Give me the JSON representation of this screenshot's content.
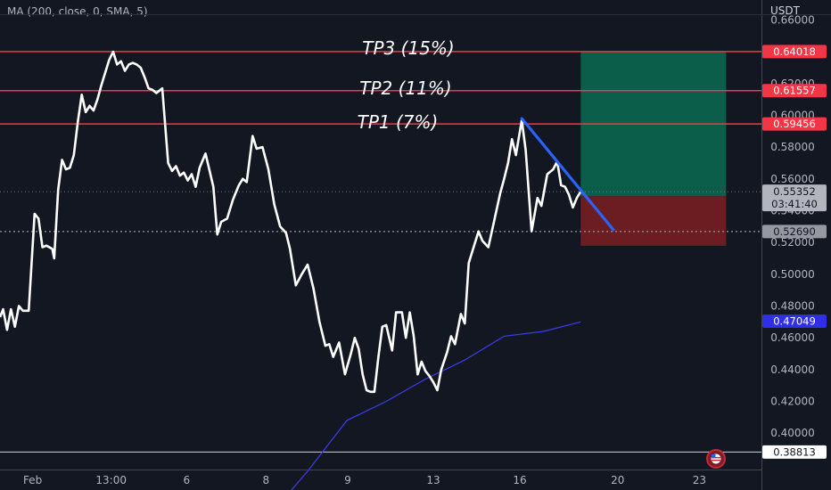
{
  "indicator_legend": "MA (200, close, 0, SMA, 5)",
  "currency": "USDT",
  "annotations": {
    "tp3": "TP3 (15%)",
    "tp2": "TP2 (11%)",
    "tp1": "TP1 (7%)"
  },
  "colors": {
    "background": "#131722",
    "price_line": "#ffffff",
    "ma_line": "#3c3cf0",
    "tp_lines": "#f23645",
    "trendline": "#2962ff",
    "profit_zone": "#0b5e4a",
    "loss_zone": "#6b1d22",
    "axis_text": "#b2b5be"
  },
  "price_badges": {
    "tp3": "0.64018",
    "tp2": "0.61557",
    "tp1": "0.59456",
    "last": "0.55352",
    "countdown": "03:41:40",
    "stop": "0.52690",
    "ma": "0.47049",
    "bottom": "0.38813"
  },
  "chart_data": {
    "type": "line",
    "series": [
      {
        "values": [
          [
            -2.83,
            0.473
          ],
          [
            -2.75,
            0.478
          ],
          [
            -2.65,
            0.465
          ],
          [
            -2.55,
            0.478
          ],
          [
            -2.45,
            0.467
          ],
          [
            -2.35,
            0.48
          ],
          [
            -2.25,
            0.477
          ],
          [
            -2.1,
            0.477
          ],
          [
            -1.95,
            0.538
          ],
          [
            -1.85,
            0.535
          ],
          [
            -1.75,
            0.517
          ],
          [
            -1.65,
            0.518
          ],
          [
            -1.5,
            0.516
          ],
          [
            -1.45,
            0.51
          ],
          [
            -1.35,
            0.553
          ],
          [
            -1.25,
            0.572
          ],
          [
            -1.15,
            0.566
          ],
          [
            -1.05,
            0.567
          ],
          [
            -0.95,
            0.575
          ],
          [
            -0.85,
            0.596
          ],
          [
            -0.75,
            0.613
          ],
          [
            -0.65,
            0.602
          ],
          [
            -0.55,
            0.606
          ],
          [
            -0.45,
            0.603
          ],
          [
            -0.35,
            0.61
          ],
          [
            -0.25,
            0.619
          ],
          [
            -0.15,
            0.627
          ],
          [
            -0.05,
            0.635
          ],
          [
            0.05,
            0.64
          ],
          [
            0.15,
            0.632
          ],
          [
            0.25,
            0.634
          ],
          [
            0.35,
            0.628
          ],
          [
            0.45,
            0.632
          ],
          [
            0.55,
            0.633
          ],
          [
            0.65,
            0.632
          ],
          [
            0.75,
            0.63
          ],
          [
            0.85,
            0.624
          ],
          [
            0.95,
            0.617
          ],
          [
            1.05,
            0.616
          ],
          [
            1.15,
            0.614
          ],
          [
            1.3,
            0.617
          ],
          [
            1.45,
            0.57
          ],
          [
            1.55,
            0.565
          ],
          [
            1.65,
            0.568
          ],
          [
            1.75,
            0.562
          ],
          [
            1.85,
            0.564
          ],
          [
            1.95,
            0.559
          ],
          [
            2.05,
            0.563
          ],
          [
            2.15,
            0.555
          ],
          [
            2.25,
            0.567
          ],
          [
            2.4,
            0.576
          ],
          [
            2.6,
            0.555
          ],
          [
            2.7,
            0.525
          ],
          [
            2.8,
            0.533
          ],
          [
            2.95,
            0.535
          ],
          [
            3.1,
            0.547
          ],
          [
            3.25,
            0.556
          ],
          [
            3.35,
            0.56
          ],
          [
            3.45,
            0.558
          ],
          [
            3.6,
            0.587
          ],
          [
            3.7,
            0.579
          ],
          [
            3.85,
            0.58
          ],
          [
            4.0,
            0.566
          ],
          [
            4.15,
            0.544
          ],
          [
            4.3,
            0.53
          ],
          [
            4.45,
            0.526
          ],
          [
            4.55,
            0.516
          ],
          [
            4.7,
            0.493
          ],
          [
            4.85,
            0.5
          ],
          [
            5.0,
            0.506
          ],
          [
            5.15,
            0.491
          ],
          [
            5.3,
            0.47
          ],
          [
            5.45,
            0.455
          ],
          [
            5.55,
            0.456
          ],
          [
            5.65,
            0.448
          ],
          [
            5.8,
            0.457
          ],
          [
            5.95,
            0.437
          ],
          [
            6.1,
            0.45
          ],
          [
            6.2,
            0.46
          ],
          [
            6.3,
            0.453
          ],
          [
            6.4,
            0.437
          ],
          [
            6.5,
            0.427
          ],
          [
            6.6,
            0.426
          ],
          [
            6.7,
            0.426
          ],
          [
            6.8,
            0.448
          ],
          [
            6.9,
            0.467
          ],
          [
            7.0,
            0.468
          ],
          [
            7.15,
            0.452
          ],
          [
            7.25,
            0.476
          ],
          [
            7.4,
            0.476
          ],
          [
            7.5,
            0.46
          ],
          [
            7.6,
            0.476
          ],
          [
            7.7,
            0.461
          ],
          [
            7.8,
            0.437
          ],
          [
            7.9,
            0.445
          ],
          [
            8.0,
            0.439
          ],
          [
            8.1,
            0.436
          ],
          [
            8.2,
            0.432
          ],
          [
            8.3,
            0.427
          ],
          [
            8.4,
            0.44
          ],
          [
            8.55,
            0.451
          ],
          [
            8.65,
            0.461
          ],
          [
            8.75,
            0.456
          ],
          [
            8.9,
            0.475
          ],
          [
            9.0,
            0.469
          ],
          [
            9.1,
            0.507
          ],
          [
            9.25,
            0.519
          ],
          [
            9.35,
            0.527
          ],
          [
            9.45,
            0.521
          ],
          [
            9.6,
            0.517
          ],
          [
            9.75,
            0.534
          ],
          [
            9.9,
            0.551
          ],
          [
            10.0,
            0.56
          ],
          [
            10.1,
            0.57
          ],
          [
            10.2,
            0.585
          ],
          [
            10.3,
            0.575
          ],
          [
            10.45,
            0.597
          ],
          [
            10.55,
            0.578
          ],
          [
            10.7,
            0.527
          ],
          [
            10.85,
            0.548
          ],
          [
            10.95,
            0.543
          ],
          [
            11.1,
            0.563
          ],
          [
            11.25,
            0.566
          ],
          [
            11.35,
            0.571
          ],
          [
            11.45,
            0.556
          ],
          [
            11.55,
            0.555
          ],
          [
            11.65,
            0.55
          ],
          [
            11.75,
            0.542
          ],
          [
            11.85,
            0.548
          ],
          [
            11.95,
            0.552
          ]
        ]
      },
      {
        "values": [
          [
            4.3,
            0.356
          ],
          [
            5.0,
            0.376
          ],
          [
            6.0,
            0.408
          ],
          [
            7.0,
            0.42
          ],
          [
            8.0,
            0.434
          ],
          [
            9.0,
            0.446
          ],
          [
            10.0,
            0.461
          ],
          [
            11.0,
            0.464
          ],
          [
            11.95,
            0.47
          ]
        ]
      }
    ],
    "x_ticks": [
      {
        "x": -2.0,
        "label": "Feb"
      },
      {
        "x": 0.0,
        "label": "13:00"
      },
      {
        "x": 1.92,
        "label": "6"
      },
      {
        "x": 3.94,
        "label": "8"
      },
      {
        "x": 6.02,
        "label": "9"
      },
      {
        "x": 8.2,
        "label": "13"
      },
      {
        "x": 10.4,
        "label": "16"
      },
      {
        "x": 12.89,
        "label": "20"
      },
      {
        "x": 14.97,
        "label": "23"
      }
    ],
    "y_ticks": [
      0.4,
      0.42,
      0.44,
      0.46,
      0.48,
      0.5,
      0.52,
      0.54,
      0.56,
      0.58,
      0.6,
      0.62,
      0.64,
      0.66
    ],
    "y_tick_labels": [
      "0.40000",
      "0.42000",
      "0.44000",
      "0.46000",
      "0.48000",
      "0.50000",
      "0.52000",
      "0.54000",
      "0.56000",
      "0.58000",
      "0.60000",
      "0.62000",
      "0.64000",
      "0.66000"
    ],
    "xlim": [
      -2.83,
      16.55
    ],
    "ylim": [
      0.3771,
      0.6726
    ],
    "horizontal_levels": {
      "tp3": 0.64018,
      "tp2": 0.61557,
      "tp1": 0.59456,
      "stop_dotted": 0.5269,
      "bottom": 0.38813
    },
    "position_zone": {
      "x_start": 11.95,
      "x_end": 15.65,
      "target": 0.64018,
      "entry": 0.5491,
      "stop": 0.5179
    },
    "trendline": {
      "x": [
        10.45,
        12.78
      ],
      "y": [
        0.598,
        0.528
      ]
    },
    "grid": false,
    "legend": "none"
  }
}
